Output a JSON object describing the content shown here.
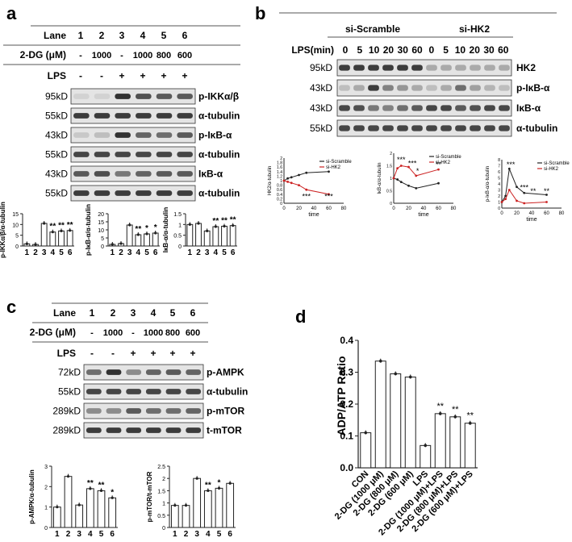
{
  "panels": {
    "a": {
      "letter": "a",
      "header": {
        "lane_label": "Lane",
        "lanes": [
          "1",
          "2",
          "3",
          "4",
          "5",
          "6"
        ],
        "dg_label": "2-DG (μM)",
        "dg_values": [
          "-",
          "1000",
          "-",
          "1000",
          "800",
          "600"
        ],
        "lps_label": "LPS",
        "lps_values": [
          "-",
          "-",
          "+",
          "+",
          "+",
          "+"
        ]
      },
      "blots": [
        {
          "kd": "95kD",
          "protein": "p-IKKα/β",
          "intensity": [
            0.1,
            0.1,
            0.9,
            0.75,
            0.7,
            0.7
          ]
        },
        {
          "kd": "55kD",
          "protein": "α-tubulin",
          "intensity": [
            0.85,
            0.85,
            0.85,
            0.85,
            0.85,
            0.85
          ]
        },
        {
          "kd": "43kD",
          "protein": "p-IκB-α",
          "intensity": [
            0.15,
            0.2,
            0.9,
            0.65,
            0.6,
            0.7
          ]
        },
        {
          "kd": "55kD",
          "protein": "α-tubulin",
          "intensity": [
            0.8,
            0.8,
            0.8,
            0.8,
            0.8,
            0.8
          ]
        },
        {
          "kd": "43kD",
          "protein": "IκB-α",
          "intensity": [
            0.7,
            0.75,
            0.55,
            0.65,
            0.7,
            0.7
          ]
        },
        {
          "kd": "55kD",
          "protein": "α-tubulin",
          "intensity": [
            0.85,
            0.85,
            0.85,
            0.85,
            0.85,
            0.85
          ]
        }
      ],
      "charts": [
        {
          "type": "bar",
          "ylabel": "p-IKKα/β/α-tubulin",
          "categories": [
            "1",
            "2",
            "3",
            "4",
            "5",
            "6"
          ],
          "values": [
            1.0,
            0.7,
            10.5,
            6.5,
            7.0,
            7.2
          ],
          "ylim": [
            0,
            15
          ],
          "yticks": [
            0,
            5,
            10,
            15
          ],
          "sig": [
            "",
            "",
            "",
            "**",
            "**",
            "**"
          ]
        },
        {
          "type": "bar",
          "ylabel": "p-IκB-α/α-tubulin",
          "categories": [
            "1",
            "2",
            "3",
            "4",
            "5",
            "6"
          ],
          "values": [
            1.0,
            1.5,
            13.0,
            7.0,
            7.5,
            8.0
          ],
          "ylim": [
            0,
            20
          ],
          "yticks": [
            0,
            5,
            10,
            15,
            20
          ],
          "sig": [
            "",
            "",
            "",
            "**",
            "*",
            "*"
          ]
        },
        {
          "type": "bar",
          "ylabel": "IκB-α/α-tubulin",
          "categories": [
            "1",
            "2",
            "3",
            "4",
            "5",
            "6"
          ],
          "values": [
            1.0,
            1.05,
            0.7,
            0.9,
            0.92,
            0.95
          ],
          "ylim": [
            0,
            1.5
          ],
          "yticks": [
            0.0,
            0.5,
            1.0,
            1.5
          ],
          "sig": [
            "",
            "",
            "",
            "**",
            "**",
            "**"
          ]
        }
      ]
    },
    "b": {
      "letter": "b",
      "groups": [
        "si-Scramble",
        "si-HK2"
      ],
      "lps_label": "LPS(min)",
      "times": [
        "0",
        "5",
        "10",
        "20",
        "30",
        "60",
        "0",
        "5",
        "10",
        "20",
        "30",
        "60"
      ],
      "blots": [
        {
          "kd": "95kD",
          "protein": "HK2",
          "intensity": [
            0.85,
            0.85,
            0.85,
            0.85,
            0.85,
            0.85,
            0.3,
            0.3,
            0.3,
            0.3,
            0.3,
            0.3
          ]
        },
        {
          "kd": "43kD",
          "protein": "p-IκB-α",
          "intensity": [
            0.2,
            0.3,
            0.85,
            0.5,
            0.4,
            0.3,
            0.2,
            0.3,
            0.6,
            0.35,
            0.25,
            0.2
          ]
        },
        {
          "kd": "43kD",
          "protein": "IκB-α",
          "intensity": [
            0.8,
            0.75,
            0.55,
            0.5,
            0.6,
            0.7,
            0.8,
            0.8,
            0.7,
            0.75,
            0.8,
            0.8
          ]
        },
        {
          "kd": "55kD",
          "protein": "α-tubulin",
          "intensity": [
            0.8,
            0.8,
            0.8,
            0.8,
            0.8,
            0.8,
            0.8,
            0.8,
            0.8,
            0.8,
            0.8,
            0.8
          ]
        }
      ],
      "charts": [
        {
          "type": "line",
          "ylabel": "HK2/α-tubulin",
          "xlabel": "time",
          "xlim": [
            0,
            80
          ],
          "xticks": [
            0,
            20,
            40,
            60,
            80
          ],
          "ylim": [
            0,
            2.0
          ],
          "yticks": [
            0.0,
            0.2,
            0.4,
            0.6,
            0.8,
            1.0,
            1.2,
            1.4,
            1.6,
            1.8,
            2.0
          ],
          "series": [
            {
              "name": "si-Scramble",
              "color": "#222222",
              "x": [
                0,
                5,
                10,
                20,
                30,
                60
              ],
              "y": [
                1.0,
                1.1,
                1.15,
                1.25,
                1.35,
                1.4
              ]
            },
            {
              "name": "si-HK2",
              "color": "#cc2222",
              "x": [
                0,
                5,
                10,
                20,
                30,
                60
              ],
              "y": [
                1.0,
                0.95,
                0.9,
                0.8,
                0.6,
                0.4
              ]
            }
          ],
          "sig": [
            {
              "x": 30,
              "y": 0.2,
              "text": "***"
            },
            {
              "x": 60,
              "y": 0.2,
              "text": "***"
            }
          ]
        },
        {
          "type": "line",
          "ylabel": "IκB-α/α-tubulin",
          "xlabel": "time",
          "xlim": [
            0,
            80
          ],
          "xticks": [
            0,
            20,
            40,
            60,
            80
          ],
          "ylim": [
            0,
            2.0
          ],
          "yticks": [
            0.0,
            0.5,
            1.0,
            1.5,
            2.0
          ],
          "series": [
            {
              "name": "si-Scramble",
              "color": "#222222",
              "x": [
                0,
                5,
                10,
                20,
                30,
                60
              ],
              "y": [
                1.0,
                0.95,
                0.85,
                0.7,
                0.6,
                0.8
              ]
            },
            {
              "name": "si-HK2",
              "color": "#cc2222",
              "x": [
                0,
                5,
                10,
                20,
                30,
                60
              ],
              "y": [
                1.0,
                1.4,
                1.5,
                1.45,
                1.1,
                1.35
              ]
            }
          ],
          "sig": [
            {
              "x": 10,
              "y": 1.65,
              "text": "***"
            },
            {
              "x": 25,
              "y": 1.5,
              "text": "***"
            },
            {
              "x": 32,
              "y": 1.2,
              "text": "*"
            },
            {
              "x": 60,
              "y": 1.45,
              "text": "**"
            }
          ]
        },
        {
          "type": "line",
          "ylabel": "p-IκB-α/α-tubulin",
          "xlabel": "time",
          "xlim": [
            0,
            80
          ],
          "xticks": [
            0,
            20,
            40,
            60,
            80
          ],
          "ylim": [
            0,
            8
          ],
          "yticks": [
            0,
            1,
            2,
            3,
            4,
            5,
            6,
            7,
            8
          ],
          "series": [
            {
              "name": "si-Scramble",
              "color": "#222222",
              "x": [
                0,
                5,
                10,
                20,
                30,
                60
              ],
              "y": [
                1.0,
                2.0,
                6.5,
                3.5,
                2.5,
                2.2
              ]
            },
            {
              "name": "si-HK2",
              "color": "#cc2222",
              "x": [
                0,
                5,
                10,
                20,
                30,
                60
              ],
              "y": [
                1.0,
                1.5,
                3.0,
                1.2,
                0.8,
                1.0
              ]
            }
          ],
          "sig": [
            {
              "x": 12,
              "y": 6.8,
              "text": "***"
            },
            {
              "x": 30,
              "y": 3.0,
              "text": "***"
            },
            {
              "x": 42,
              "y": 2.4,
              "text": "**"
            },
            {
              "x": 60,
              "y": 2.4,
              "text": "**"
            }
          ]
        }
      ]
    },
    "c": {
      "letter": "c",
      "header": {
        "lane_label": "Lane",
        "lanes": [
          "1",
          "2",
          "3",
          "4",
          "5",
          "6"
        ],
        "dg_label": "2-DG (μM)",
        "dg_values": [
          "-",
          "1000",
          "-",
          "1000",
          "800",
          "600"
        ],
        "lps_label": "LPS",
        "lps_values": [
          "-",
          "-",
          "+",
          "+",
          "+",
          "+"
        ]
      },
      "blots": [
        {
          "kd": "72kD",
          "protein": "p-AMPK",
          "intensity": [
            0.6,
            0.9,
            0.45,
            0.65,
            0.7,
            0.65
          ]
        },
        {
          "kd": "55kD",
          "protein": "α-tubulin",
          "intensity": [
            0.8,
            0.8,
            0.8,
            0.8,
            0.8,
            0.8
          ]
        },
        {
          "kd": "289kD",
          "protein": "p-mTOR",
          "intensity": [
            0.45,
            0.45,
            0.7,
            0.6,
            0.6,
            0.65
          ]
        },
        {
          "kd": "289kD",
          "protein": "t-mTOR",
          "intensity": [
            0.85,
            0.85,
            0.85,
            0.85,
            0.85,
            0.85
          ]
        }
      ],
      "charts": [
        {
          "type": "bar",
          "ylabel": "p-AMPK/α-tubulin",
          "categories": [
            "1",
            "2",
            "3",
            "4",
            "5",
            "6"
          ],
          "values": [
            1.0,
            2.5,
            1.1,
            1.9,
            1.8,
            1.45
          ],
          "ylim": [
            0,
            3
          ],
          "yticks": [
            0,
            1,
            2,
            3
          ],
          "sig": [
            "",
            "",
            "",
            "**",
            "**",
            "*"
          ]
        },
        {
          "type": "bar",
          "ylabel": "p-mTOR/t-mTOR",
          "categories": [
            "1",
            "2",
            "3",
            "4",
            "5",
            "6"
          ],
          "values": [
            0.9,
            0.9,
            2.0,
            1.5,
            1.6,
            1.8
          ],
          "ylim": [
            0,
            2.5
          ],
          "yticks": [
            0.0,
            0.5,
            1.0,
            1.5,
            2.0,
            2.5
          ],
          "sig": [
            "",
            "",
            "",
            "**",
            "*",
            ""
          ]
        }
      ]
    },
    "d": {
      "letter": "d",
      "chart": {
        "type": "bar",
        "ylabel": "ADP/ATP Ratio",
        "categories": [
          "CON",
          "2-DG (1000 μM)",
          "2-DG (800 μM)",
          "2-DG (600 μM)",
          "LPS",
          "2-DG (1000 μM)+LPS",
          "2-DG (800 μM)+LPS",
          "2-DG (600 μM)+LPS"
        ],
        "values": [
          0.11,
          0.335,
          0.295,
          0.285,
          0.07,
          0.17,
          0.16,
          0.14
        ],
        "ylim": [
          0,
          0.4
        ],
        "yticks": [
          0.0,
          0.1,
          0.2,
          0.3,
          0.4
        ],
        "sig": [
          "",
          "",
          "",
          "",
          "",
          "**",
          "**",
          "**"
        ]
      }
    }
  }
}
